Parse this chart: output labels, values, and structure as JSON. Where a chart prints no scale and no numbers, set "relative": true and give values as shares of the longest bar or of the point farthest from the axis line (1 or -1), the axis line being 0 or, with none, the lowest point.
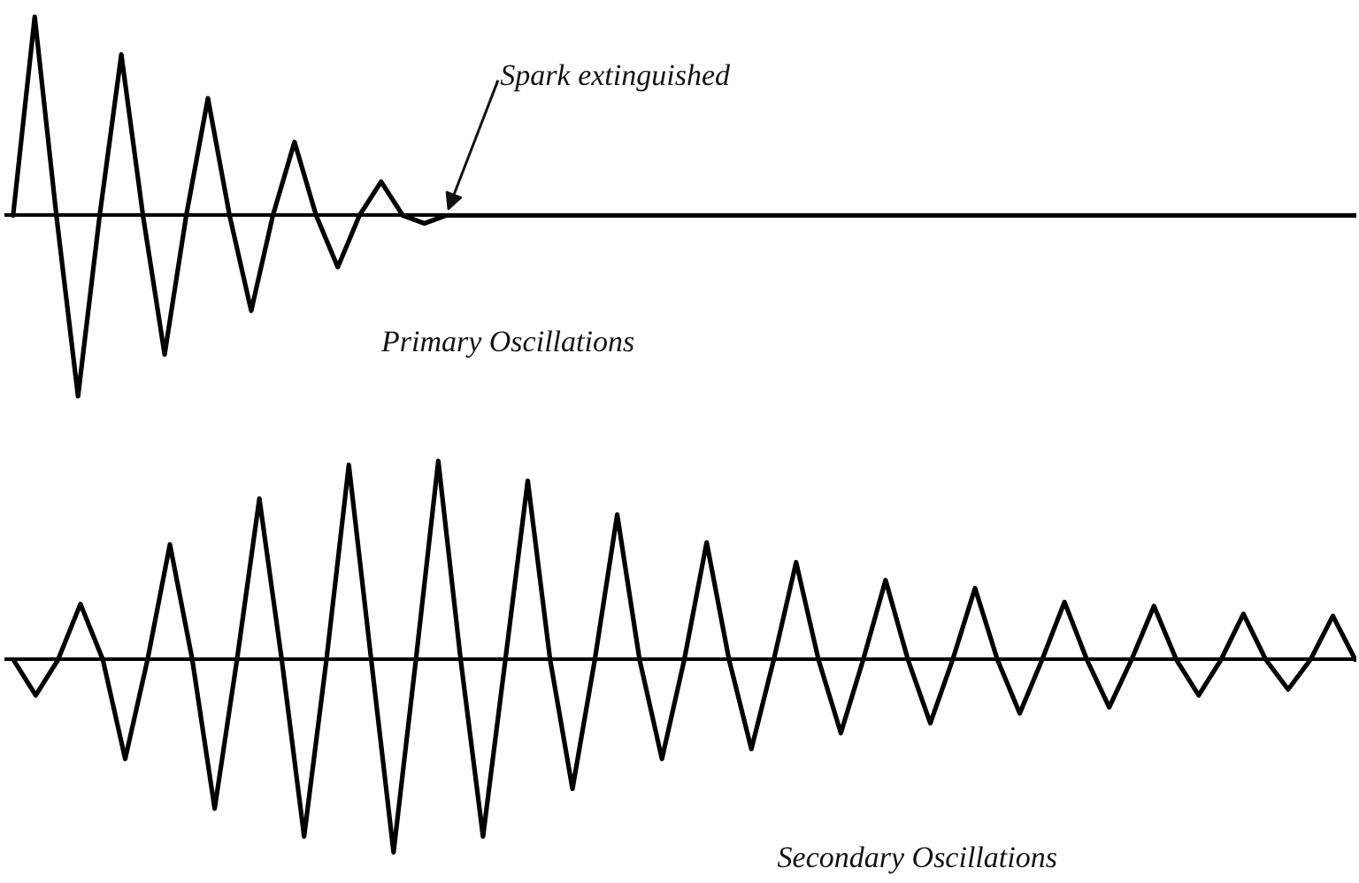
{
  "chart_data": [
    {
      "type": "line",
      "title": "Primary Oscillations",
      "relative": true,
      "annotations": [
        "Spark extinguished"
      ],
      "categories": [
        null,
        null,
        null,
        null,
        null,
        null,
        null,
        null,
        null,
        null,
        null,
        null,
        null,
        null,
        null,
        null,
        null,
        null,
        null,
        null,
        null,
        null,
        null,
        null,
        null,
        null,
        null,
        null,
        null,
        null,
        null,
        null,
        null,
        null,
        null,
        null,
        null,
        null,
        null,
        null,
        null,
        null,
        null,
        null,
        null,
        null,
        null,
        null,
        null,
        null,
        null,
        null,
        null,
        null,
        null,
        null,
        null,
        null,
        null,
        null,
        null,
        null,
        null
      ],
      "series": [
        {
          "color": "#000000",
          "values": [
            0,
            1,
            0,
            -0.91,
            0,
            0.81,
            0,
            -0.7,
            0,
            0.59,
            0,
            -0.48,
            0,
            0.37,
            0,
            -0.26,
            0,
            0.17,
            0,
            -0.04,
            0,
            0,
            0,
            0,
            0,
            0,
            0,
            0,
            0,
            0,
            0,
            0,
            0,
            0,
            0,
            0,
            0,
            0,
            0,
            0,
            0,
            0,
            0,
            0,
            0,
            0,
            0,
            0,
            0,
            0,
            0,
            0,
            0,
            0,
            0,
            0,
            0,
            0,
            0,
            0,
            0,
            0,
            0
          ]
        }
      ]
    },
    {
      "type": "line",
      "title": "Secondary Oscillations",
      "relative": true,
      "categories": [
        null,
        null,
        null,
        null,
        null,
        null,
        null,
        null,
        null,
        null,
        null,
        null,
        null,
        null,
        null,
        null,
        null,
        null,
        null,
        null,
        null,
        null,
        null,
        null,
        null,
        null,
        null,
        null,
        null,
        null,
        null,
        null,
        null,
        null,
        null,
        null,
        null,
        null,
        null,
        null,
        null,
        null,
        null,
        null,
        null,
        null,
        null,
        null,
        null,
        null,
        null,
        null,
        null,
        null,
        null,
        null,
        null,
        null,
        null,
        null,
        null
      ],
      "series": [
        {
          "color": "#000000",
          "values": [
            0,
            -0.18,
            0,
            0.28,
            0,
            -0.5,
            0,
            0.58,
            0,
            -0.75,
            0,
            0.81,
            0,
            -0.89,
            0,
            0.98,
            0,
            -0.97,
            0,
            1,
            0,
            -0.89,
            0,
            0.9,
            0,
            -0.65,
            0,
            0.73,
            0,
            -0.5,
            0,
            0.59,
            0,
            -0.45,
            0,
            0.49,
            0,
            -0.37,
            0,
            0.4,
            0,
            -0.32,
            0,
            0.36,
            0,
            -0.27,
            0,
            0.29,
            0,
            -0.24,
            0,
            0.27,
            0,
            -0.18,
            0,
            0.23,
            0,
            -0.15,
            0,
            0.22,
            0
          ]
        }
      ]
    }
  ]
}
